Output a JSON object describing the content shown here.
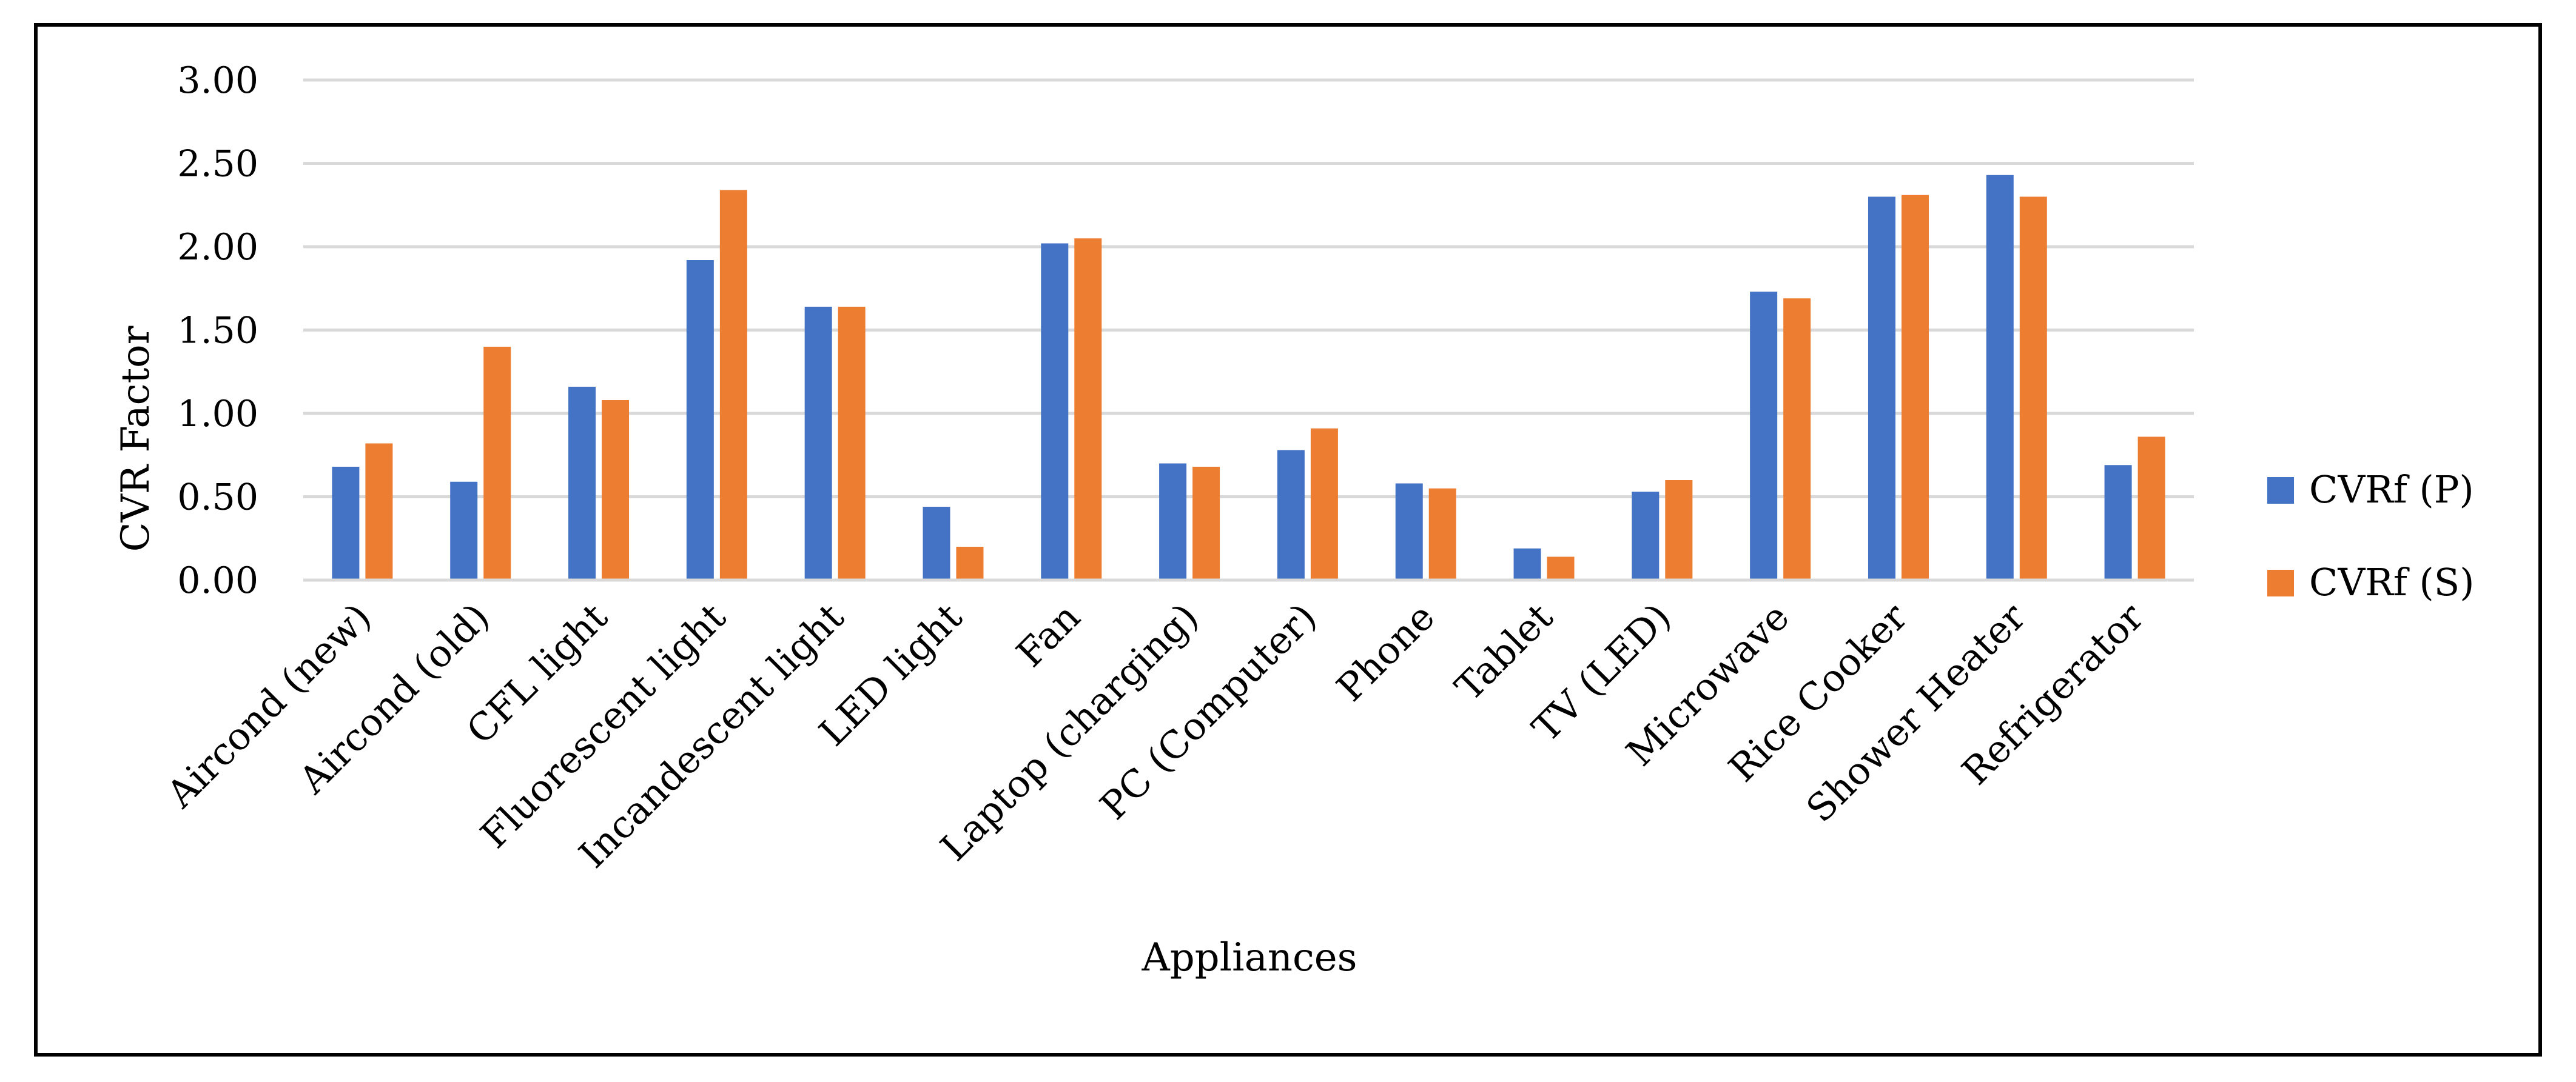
{
  "chart_data": {
    "type": "bar",
    "title": "",
    "xlabel": "Appliances",
    "ylabel": "CVR Factor",
    "ylim": [
      0,
      3
    ],
    "yticks": [
      0,
      0.5,
      1,
      1.5,
      2,
      2.5,
      3
    ],
    "ytick_labels": [
      "0.00",
      "0.50",
      "1.00",
      "1.50",
      "2.00",
      "2.50",
      "3.00"
    ],
    "grid": true,
    "legend_position": "right",
    "categories": [
      "Aircond (new)",
      "Aircond (old)",
      "CFL light",
      "Fluorescent light",
      "Incandescent light",
      "LED light",
      "Fan",
      "Laptop (charging)",
      "PC (Computer)",
      "Phone",
      "Tablet",
      "TV (LED)",
      "Microwave",
      "Rice Cooker",
      "Shower Heater",
      "Refrigerator"
    ],
    "series": [
      {
        "name": "CVRf (P)",
        "color": "#4472C4",
        "values": [
          0.68,
          0.59,
          1.16,
          1.92,
          1.64,
          0.44,
          2.02,
          0.7,
          0.78,
          0.58,
          0.19,
          0.53,
          1.73,
          2.3,
          2.43,
          0.69
        ]
      },
      {
        "name": "CVRf (S)",
        "color": "#ED7D31",
        "values": [
          0.82,
          1.4,
          1.08,
          2.34,
          1.64,
          0.2,
          2.05,
          0.68,
          0.91,
          0.55,
          0.14,
          0.6,
          1.69,
          2.31,
          2.3,
          0.86
        ]
      }
    ]
  }
}
